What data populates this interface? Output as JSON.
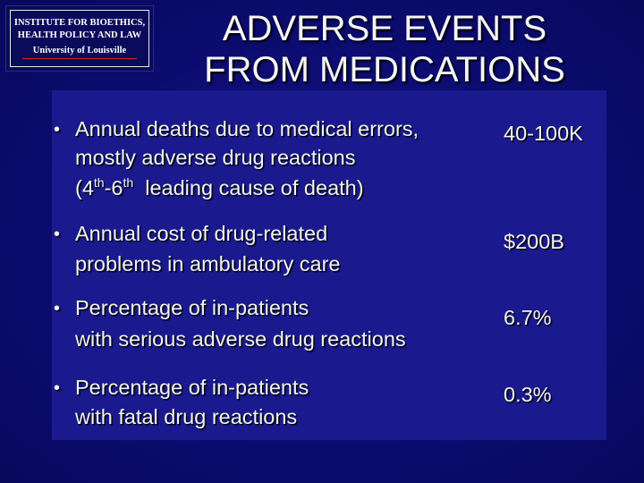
{
  "logo": {
    "lines": [
      "INSTITUTE FOR BIOETHICS,",
      "HEALTH POLICY AND LAW",
      "University of Louisville"
    ]
  },
  "title": {
    "lines": [
      "ADVERSE EVENTS",
      "FROM MEDICATIONS"
    ]
  },
  "items": [
    {
      "lines": [
        "Annual deaths due to medical errors,",
        "mostly adverse drug reactions"
      ],
      "note": [
        "(4",
        "th",
        "-6",
        "th",
        "  leading cause of death)"
      ],
      "value": "40-100K"
    },
    {
      "lines": [
        "Annual cost of drug-related",
        "problems in ambulatory care"
      ],
      "value": "$200B"
    },
    {
      "lines": [
        "Percentage of in-patients",
        "with serious adverse drug reactions"
      ],
      "value": "6.7%"
    },
    {
      "lines": [
        "Percentage of in-patients",
        "with fatal drug reactions"
      ],
      "value": "0.3%"
    }
  ]
}
